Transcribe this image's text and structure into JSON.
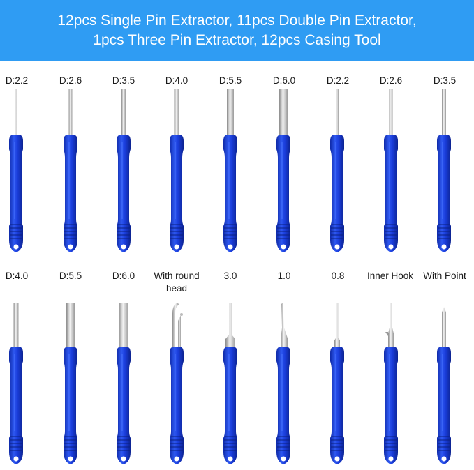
{
  "banner": {
    "line1": "12pcs Single Pin Extractor, 11pcs Double Pin Extractor,",
    "line2": "1pcs Three Pin Extractor, 12pcs Casing Tool"
  },
  "colors": {
    "banner": "#2f9cf3",
    "handle": "#1a3ddb",
    "handle_dark": "#0f2aa8",
    "shaft": "#c9c9c9"
  },
  "row1": [
    {
      "label": "D:2.2",
      "icon": "thin-pin-tool"
    },
    {
      "label": "D:2.6",
      "icon": "thin-pin-tool"
    },
    {
      "label": "D:3.5",
      "icon": "pin-tool"
    },
    {
      "label": "D:4.0",
      "icon": "pin-tool"
    },
    {
      "label": "D:5.5",
      "icon": "wide-pin-tool"
    },
    {
      "label": "D:6.0",
      "icon": "wide-pin-tool"
    },
    {
      "label": "D:2.2",
      "icon": "thin-pin-tool"
    },
    {
      "label": "D:2.6",
      "icon": "thin-pin-tool"
    },
    {
      "label": "D:3.5",
      "icon": "pin-tool"
    }
  ],
  "row2": [
    {
      "label": "D:4.0",
      "icon": "pin-tool"
    },
    {
      "label": "D:5.5",
      "icon": "casing-tool"
    },
    {
      "label": "D:6.0",
      "icon": "casing-tool"
    },
    {
      "label": "With round head",
      "icon": "round-head-tool"
    },
    {
      "label": "3.0",
      "icon": "flat-blade-tool"
    },
    {
      "label": "1.0",
      "icon": "angled-blade-tool"
    },
    {
      "label": "0.8",
      "icon": "needle-tool"
    },
    {
      "label": "Inner Hook",
      "icon": "inner-hook-tool"
    },
    {
      "label": "With Point",
      "icon": "pointed-tool"
    }
  ]
}
